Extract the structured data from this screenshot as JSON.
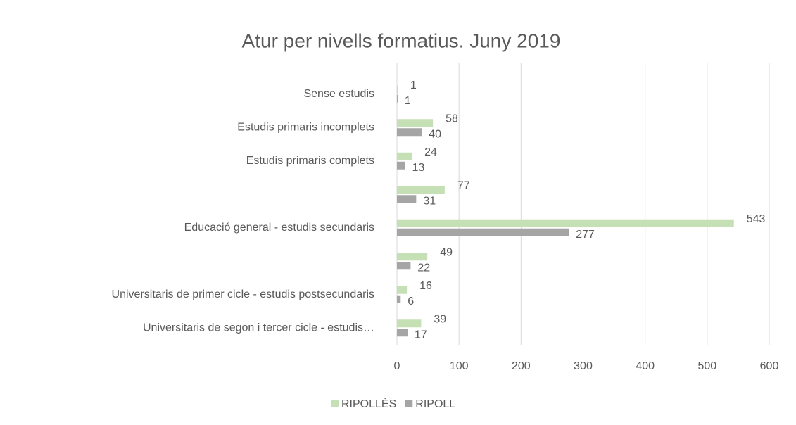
{
  "chart_data": {
    "type": "hbar",
    "title": "Atur per nivells formatius. Juny 2019",
    "categories": [
      "Sense estudis",
      "Estudis primaris incomplets",
      "Estudis primaris complets",
      null,
      "Educació general - estudis secundaris",
      null,
      "Universitaris de primer cicle - estudis postsecundaris",
      "Universitaris de segon i tercer cicle - estudis…"
    ],
    "series": [
      {
        "name": "RIPOLLÈS",
        "color": "#c5e0b4",
        "values": [
          1,
          58,
          24,
          77,
          543,
          49,
          16,
          39
        ]
      },
      {
        "name": "RIPOLL",
        "color": "#a5a5a5",
        "values": [
          1,
          40,
          13,
          31,
          277,
          22,
          6,
          17
        ]
      }
    ],
    "xlim": [
      0,
      600
    ],
    "xticks": [
      0,
      100,
      200,
      300,
      400,
      500,
      600
    ],
    "grid": true,
    "legend": "bottom"
  }
}
